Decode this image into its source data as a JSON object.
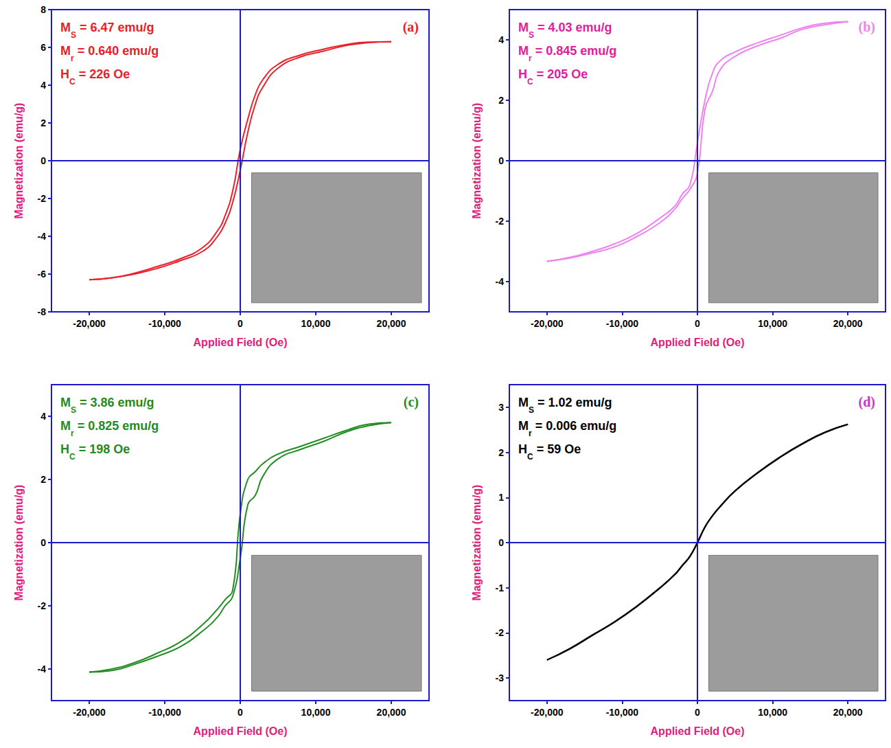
{
  "chart_data": [
    {
      "type": "line",
      "panel": "(a)",
      "annotations": [
        {
          "text": "M",
          "subscript": "S",
          "rest": " = 6.47 emu/g"
        },
        {
          "text": "M",
          "subscript": "r",
          "rest": " = 0.640 emu/g"
        },
        {
          "text": "H",
          "subscript": "C",
          "rest": " = 226 Oe"
        }
      ],
      "xlabel": "Applied Field (Oe)",
      "ylabel": "Magnetization (emu/g)",
      "xlim": [
        -25000,
        25000
      ],
      "xticks": [
        -20000,
        -10000,
        0,
        10000,
        20000
      ],
      "ylim": [
        -8,
        8
      ],
      "yticks": [
        -8,
        -6,
        -4,
        -2,
        0,
        2,
        4,
        6,
        8
      ],
      "series": [
        {
          "color": "#e8202a",
          "x": [
            -20000,
            -17000,
            -14000,
            -11000,
            -8000,
            -5000,
            -3000,
            -2000,
            -1000,
            0,
            1000,
            2000,
            3000,
            5000,
            8000,
            11000,
            14000,
            17000,
            20000
          ],
          "values": [
            -6.3,
            -6.2,
            -6.0,
            -5.7,
            -5.3,
            -4.8,
            -4.0,
            -3.3,
            -2.2,
            -0.5,
            1.5,
            3.0,
            3.9,
            4.9,
            5.5,
            5.8,
            6.1,
            6.25,
            6.3
          ]
        },
        {
          "color": "#e8202a",
          "x": [
            -20000,
            -17000,
            -14000,
            -11000,
            -8000,
            -5000,
            -3000,
            -2000,
            -1000,
            0,
            1000,
            2000,
            3000,
            5000,
            8000,
            11000,
            14000,
            17000,
            20000
          ],
          "values": [
            -6.3,
            -6.2,
            -5.95,
            -5.6,
            -5.2,
            -4.6,
            -3.7,
            -2.9,
            -1.6,
            0.6,
            2.2,
            3.5,
            4.3,
            5.1,
            5.6,
            5.9,
            6.15,
            6.28,
            6.3
          ]
        }
      ]
    },
    {
      "type": "line",
      "panel": "(b)",
      "annotations": [
        {
          "text": "M",
          "subscript": "S",
          "rest": " = 4.03 emu/g"
        },
        {
          "text": "M",
          "subscript": "r",
          "rest": " = 0.845 emu/g"
        },
        {
          "text": "H",
          "subscript": "C",
          "rest": " = 205 Oe"
        }
      ],
      "xlabel": "Applied Field (Oe)",
      "ylabel": "Magnetization (emu/g)",
      "xlim": [
        -25000,
        25000
      ],
      "xticks": [
        -20000,
        -10000,
        0,
        10000,
        20000
      ],
      "ylim": [
        -5,
        5
      ],
      "yticks": [
        -4,
        -2,
        0,
        2,
        4
      ],
      "series": [
        {
          "color": "#ee82ee",
          "x": [
            -20000,
            -17000,
            -14000,
            -11000,
            -8000,
            -5000,
            -3000,
            -2000,
            -1000,
            0,
            1000,
            2000,
            3000,
            5000,
            8000,
            11000,
            14000,
            17000,
            20000
          ],
          "values": [
            -3.33,
            -3.22,
            -3.05,
            -2.85,
            -2.5,
            -2.05,
            -1.6,
            -1.25,
            -0.95,
            -0.4,
            1.7,
            2.3,
            3.0,
            3.45,
            3.8,
            4.05,
            4.35,
            4.5,
            4.6
          ]
        },
        {
          "color": "#ee82ee",
          "x": [
            -20000,
            -17000,
            -14000,
            -11000,
            -8000,
            -5000,
            -3000,
            -2000,
            -1000,
            0,
            1000,
            2000,
            3000,
            5000,
            8000,
            11000,
            14000,
            17000,
            20000
          ],
          "values": [
            -3.33,
            -3.2,
            -3.0,
            -2.75,
            -2.4,
            -1.9,
            -1.5,
            -1.1,
            -0.8,
            0.6,
            2.0,
            2.9,
            3.3,
            3.6,
            3.9,
            4.15,
            4.4,
            4.55,
            4.6
          ]
        }
      ]
    },
    {
      "type": "line",
      "panel": "(c)",
      "annotations": [
        {
          "text": "M",
          "subscript": "S",
          "rest": " = 3.86 emu/g"
        },
        {
          "text": "M",
          "subscript": "r",
          "rest": " = 0.825 emu/g"
        },
        {
          "text": "H",
          "subscript": "C",
          "rest": " = 198 Oe"
        }
      ],
      "xlabel": "Applied Field (Oe)",
      "ylabel": "Magnetization (emu/g)",
      "xlim": [
        -25000,
        25000
      ],
      "xticks": [
        -20000,
        -10000,
        0,
        10000,
        20000
      ],
      "ylim": [
        -5,
        5
      ],
      "yticks": [
        -4,
        -2,
        0,
        2,
        4
      ],
      "series": [
        {
          "color": "#228b22",
          "x": [
            -20000,
            -17000,
            -14000,
            -11000,
            -8000,
            -5000,
            -3000,
            -2000,
            -1000,
            0,
            1000,
            2000,
            3000,
            5000,
            8000,
            11000,
            14000,
            17000,
            20000
          ],
          "values": [
            -4.1,
            -4.05,
            -3.85,
            -3.6,
            -3.3,
            -2.8,
            -2.35,
            -2.0,
            -1.7,
            -0.5,
            1.2,
            1.5,
            2.1,
            2.65,
            2.95,
            3.2,
            3.5,
            3.7,
            3.8
          ]
        },
        {
          "color": "#228b22",
          "x": [
            -20000,
            -17000,
            -14000,
            -11000,
            -8000,
            -5000,
            -3000,
            -2000,
            -1000,
            0,
            1000,
            2000,
            3000,
            5000,
            8000,
            11000,
            14000,
            17000,
            20000
          ],
          "values": [
            -4.1,
            -4.0,
            -3.8,
            -3.5,
            -3.15,
            -2.6,
            -2.1,
            -1.8,
            -1.5,
            0.9,
            2.0,
            2.25,
            2.5,
            2.8,
            3.05,
            3.3,
            3.55,
            3.75,
            3.8
          ]
        }
      ]
    },
    {
      "type": "line",
      "panel": "(d)",
      "annotations": [
        {
          "text": "M",
          "subscript": "S",
          "rest": " = 1.02 emu/g"
        },
        {
          "text": "M",
          "subscript": "r",
          "rest": " = 0.006 emu/g"
        },
        {
          "text": "H",
          "subscript": "C",
          "rest": " = 59 Oe"
        }
      ],
      "xlabel": "Applied Field (Oe)",
      "ylabel": "Magnetization (emu/g)",
      "xlim": [
        -25000,
        25000
      ],
      "xticks": [
        -20000,
        -10000,
        0,
        10000,
        20000
      ],
      "ylim": [
        -3.5,
        3.5
      ],
      "yticks": [
        -3,
        -2,
        -1,
        0,
        1,
        2,
        3
      ],
      "series": [
        {
          "color": "#000000",
          "x": [
            -20000,
            -17000,
            -14000,
            -11000,
            -8000,
            -5000,
            -3000,
            -2000,
            -1000,
            0,
            1000,
            2000,
            3000,
            5000,
            8000,
            11000,
            14000,
            17000,
            20000
          ],
          "values": [
            -2.6,
            -2.36,
            -2.06,
            -1.76,
            -1.41,
            -1.01,
            -0.71,
            -0.51,
            -0.31,
            -0.01,
            0.34,
            0.59,
            0.79,
            1.14,
            1.54,
            1.89,
            2.19,
            2.44,
            2.62
          ]
        },
        {
          "color": "#000000",
          "x": [
            -20000,
            -17000,
            -14000,
            -11000,
            -8000,
            -5000,
            -3000,
            -2000,
            -1000,
            0,
            1000,
            2000,
            3000,
            5000,
            8000,
            11000,
            14000,
            17000,
            20000
          ],
          "values": [
            -2.6,
            -2.35,
            -2.05,
            -1.75,
            -1.4,
            -1.0,
            -0.7,
            -0.5,
            -0.3,
            0.01,
            0.35,
            0.6,
            0.8,
            1.15,
            1.55,
            1.9,
            2.2,
            2.45,
            2.62
          ]
        }
      ]
    }
  ]
}
